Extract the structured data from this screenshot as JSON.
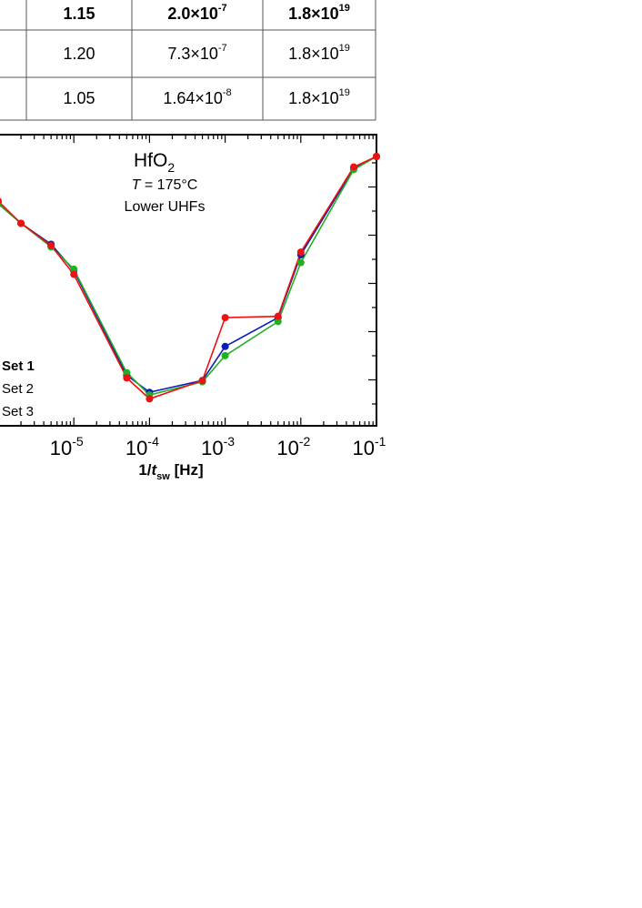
{
  "table": {
    "rows": [
      {
        "col1": "1.15",
        "col2_mantissa": "2.0×10",
        "col2_exp": "-7",
        "col3_mantissa": "1.8×10",
        "col3_exp": "19",
        "bold": true
      },
      {
        "col1": "1.20",
        "col2_mantissa": "7.3×10",
        "col2_exp": "-7",
        "col3_mantissa": "1.8×10",
        "col3_exp": "19",
        "bold": false
      },
      {
        "col1": "1.05",
        "col2_mantissa": "1.64×10",
        "col2_exp": "-8",
        "col3_mantissa": "1.8×10",
        "col3_exp": "19",
        "bold": false
      }
    ]
  },
  "chart_data": {
    "type": "line",
    "x_scale": "log",
    "xlim": [
      1e-06,
      0.1
    ],
    "x_ticks": [
      {
        "value": 1e-05,
        "base": "10",
        "exp": "-5"
      },
      {
        "value": 0.0001,
        "base": "10",
        "exp": "-4"
      },
      {
        "value": 0.001,
        "base": "10",
        "exp": "-3"
      },
      {
        "value": 0.01,
        "base": "10",
        "exp": "-2"
      },
      {
        "value": 0.1,
        "base": "10",
        "exp": "-1"
      }
    ],
    "xlabel": {
      "prefix": "1/",
      "italic": "t",
      "sub": "sw",
      "suffix": " [Hz]"
    },
    "ylim": [
      0,
      1
    ],
    "annotations": {
      "material_main": "HfO",
      "material_sub": "2",
      "temp_italic": "T",
      "temp_rest": " = 175°C",
      "condition": "Lower UHFs"
    },
    "colors": {
      "set1": "#0a1fb4",
      "set2": "#22b022",
      "set3": "#ee1111"
    },
    "legend": [
      "Set 1",
      "Set 2",
      "Set 3"
    ],
    "series": [
      {
        "name": "Set 1",
        "color": "#0a1fb4",
        "points": [
          [
            1e-06,
            0.82
          ],
          [
            2e-06,
            0.745
          ],
          [
            5e-06,
            0.665
          ],
          [
            1e-05,
            0.565
          ],
          [
            5e-05,
            0.165
          ],
          [
            0.0001,
            0.1
          ],
          [
            0.0005,
            0.145
          ],
          [
            0.001,
            0.275
          ],
          [
            0.005,
            0.385
          ],
          [
            0.01,
            0.625
          ],
          [
            0.05,
            0.955
          ],
          [
            0.1,
            1.0
          ]
        ]
      },
      {
        "name": "Set 2",
        "color": "#22b022",
        "points": [
          [
            1e-06,
            0.82
          ],
          [
            2e-06,
            0.745
          ],
          [
            5e-06,
            0.655
          ],
          [
            1e-05,
            0.57
          ],
          [
            5e-05,
            0.175
          ],
          [
            0.0001,
            0.09
          ],
          [
            0.0005,
            0.14
          ],
          [
            0.001,
            0.24
          ],
          [
            0.005,
            0.37
          ],
          [
            0.01,
            0.595
          ],
          [
            0.05,
            0.95
          ],
          [
            0.1,
            1.0
          ]
        ]
      },
      {
        "name": "Set 3",
        "color": "#ee1111",
        "points": [
          [
            1e-06,
            0.83
          ],
          [
            2e-06,
            0.745
          ],
          [
            5e-06,
            0.66
          ],
          [
            1e-05,
            0.55
          ],
          [
            5e-05,
            0.155
          ],
          [
            0.0001,
            0.075
          ],
          [
            0.0005,
            0.145
          ],
          [
            0.001,
            0.385
          ],
          [
            0.005,
            0.39
          ],
          [
            0.01,
            0.635
          ],
          [
            0.05,
            0.96
          ],
          [
            0.1,
            1.0
          ]
        ]
      }
    ]
  }
}
